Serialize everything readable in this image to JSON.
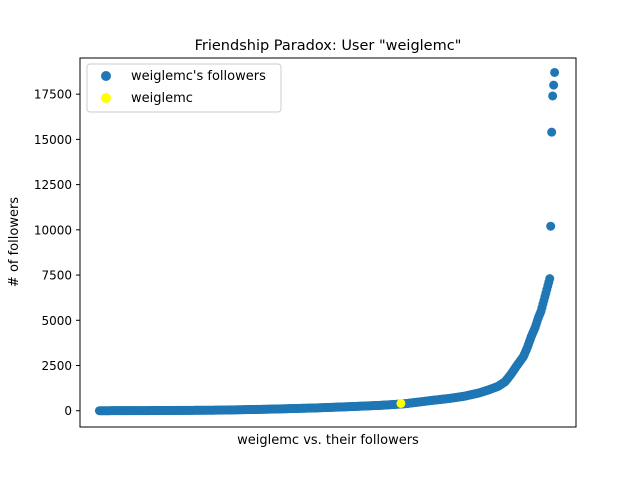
{
  "chart_data": {
    "type": "scatter",
    "title": "Friendship Paradox: User \"weiglemc\"",
    "xlabel": "weiglemc vs. their followers",
    "ylabel": "# of followers",
    "ylim": [
      -900,
      19500
    ],
    "yticks": [
      0,
      2500,
      5000,
      7500,
      10000,
      12500,
      15000,
      17500
    ],
    "x_ticks_visible": false,
    "legend_position": "upper-left",
    "series": [
      {
        "name": "weiglemc's followers",
        "color": "#1f77b4",
        "description": "followers sorted ascending by follower count",
        "count": 470,
        "curve_points": [
          [
            0,
            0
          ],
          [
            60,
            10
          ],
          [
            120,
            30
          ],
          [
            170,
            80
          ],
          [
            220,
            150
          ],
          [
            260,
            230
          ],
          [
            290,
            300
          ],
          [
            315,
            390
          ],
          [
            340,
            560
          ],
          [
            360,
            680
          ],
          [
            375,
            800
          ],
          [
            390,
            980
          ],
          [
            400,
            1150
          ],
          [
            410,
            1350
          ],
          [
            417,
            1600
          ],
          [
            423,
            2000
          ],
          [
            428,
            2400
          ],
          [
            432,
            2700
          ],
          [
            436,
            3000
          ],
          [
            440,
            3500
          ],
          [
            444,
            4100
          ],
          [
            448,
            4600
          ],
          [
            451,
            5100
          ],
          [
            454,
            5500
          ],
          [
            456,
            5900
          ],
          [
            458,
            6300
          ],
          [
            460,
            6700
          ],
          [
            462,
            7100
          ],
          [
            463,
            7300
          ]
        ],
        "top_values": [
          10200,
          15400,
          17400,
          18000,
          18700
        ]
      },
      {
        "name": "weiglemc",
        "color": "#ffff00",
        "points": [
          [
            310,
            400
          ]
        ]
      }
    ]
  }
}
